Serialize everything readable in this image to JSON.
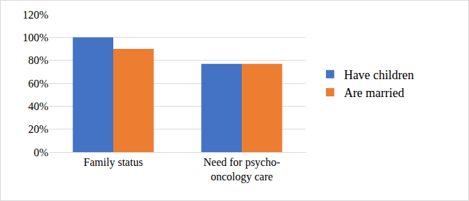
{
  "chart_data": {
    "type": "bar",
    "categories": [
      "Family status",
      "Need for psycho-oncology care"
    ],
    "series": [
      {
        "name": "Have children",
        "color": "#4472c4",
        "values": [
          100,
          77
        ]
      },
      {
        "name": "Are married",
        "color": "#ed7d31",
        "values": [
          90,
          77
        ]
      }
    ],
    "ylim": [
      0,
      120
    ],
    "yticks": [
      {
        "value": 0,
        "label": "0%"
      },
      {
        "value": 20,
        "label": "20%"
      },
      {
        "value": 40,
        "label": "40%"
      },
      {
        "value": 60,
        "label": "60%"
      },
      {
        "value": 80,
        "label": "80%"
      },
      {
        "value": 100,
        "label": "100%"
      },
      {
        "value": 120,
        "label": "120%"
      }
    ],
    "grid": true,
    "legend": "right"
  }
}
